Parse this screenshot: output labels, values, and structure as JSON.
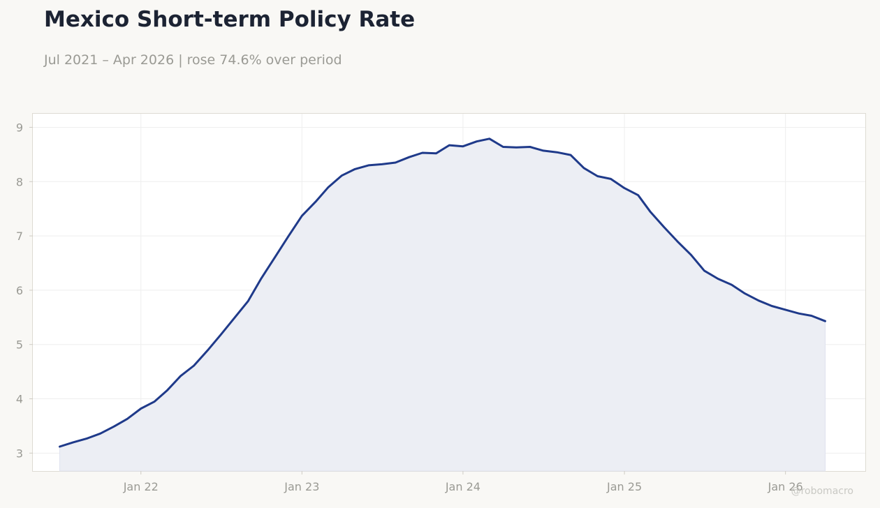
{
  "header": {
    "title": "Mexico Short-term Policy Rate",
    "subtitle": "Jul 2021 – Apr 2026 | rose 74.6% over period"
  },
  "watermark": "@robomacro",
  "colors": {
    "line": "#1f3a8a",
    "fill": "#eceef4",
    "background": "#f9f8f5",
    "plot_background": "#ffffff",
    "grid": "#eeeeee",
    "text_muted": "#9a9a94",
    "title": "#1c2333"
  },
  "chart_data": {
    "type": "area",
    "title": "Mexico Short-term Policy Rate",
    "subtitle": "Jul 2021 – Apr 2026 | rose 74.6% over period",
    "xlabel": "",
    "ylabel": "",
    "xlim": [
      "2021-05-01",
      "2026-07-01"
    ],
    "ylim": [
      2.67,
      9.25
    ],
    "grid": true,
    "legend": "none",
    "x_ticks": [
      {
        "date": "2022-01-01",
        "label": "Jan 22"
      },
      {
        "date": "2023-01-01",
        "label": "Jan 23"
      },
      {
        "date": "2024-01-01",
        "label": "Jan 24"
      },
      {
        "date": "2025-01-01",
        "label": "Jan 25"
      },
      {
        "date": "2026-01-01",
        "label": "Jan 26"
      }
    ],
    "y_ticks": [
      3,
      4,
      5,
      6,
      7,
      8,
      9
    ],
    "series": [
      {
        "x": [
          "2021-07",
          "2021-08",
          "2021-09",
          "2021-10",
          "2021-11",
          "2021-12",
          "2022-01",
          "2022-02",
          "2022-03",
          "2022-04",
          "2022-05",
          "2022-06",
          "2022-07",
          "2022-08",
          "2022-09",
          "2022-10",
          "2022-11",
          "2022-12",
          "2023-01",
          "2023-02",
          "2023-03",
          "2023-04",
          "2023-05",
          "2023-06",
          "2023-07",
          "2023-08",
          "2023-09",
          "2023-10",
          "2023-11",
          "2023-12",
          "2024-01",
          "2024-02",
          "2024-03",
          "2024-04",
          "2024-05",
          "2024-06",
          "2024-07",
          "2024-08",
          "2024-09",
          "2024-10",
          "2024-11",
          "2024-12",
          "2025-01",
          "2025-02",
          "2025-03",
          "2025-04",
          "2025-05",
          "2025-06",
          "2025-07",
          "2025-08",
          "2025-09",
          "2025-10",
          "2025-11",
          "2025-12",
          "2026-01",
          "2026-02",
          "2026-03",
          "2026-04"
        ],
        "values": [
          3.12,
          3.2,
          3.27,
          3.36,
          3.49,
          3.63,
          3.82,
          3.95,
          4.15,
          4.42,
          4.61,
          4.89,
          5.18,
          5.49,
          5.8,
          6.22,
          6.61,
          6.99,
          7.37,
          7.63,
          7.89,
          8.11,
          8.23,
          8.3,
          8.32,
          8.35,
          8.45,
          8.53,
          8.52,
          8.67,
          8.65,
          8.74,
          8.79,
          8.64,
          8.63,
          8.64,
          8.57,
          8.54,
          8.49,
          8.25,
          8.1,
          8.05,
          7.88,
          7.75,
          7.44,
          7.16,
          6.9,
          6.65,
          6.36,
          6.21,
          6.1,
          5.94,
          5.81,
          5.71,
          5.64,
          5.57,
          5.53,
          5.43
        ]
      }
    ]
  }
}
